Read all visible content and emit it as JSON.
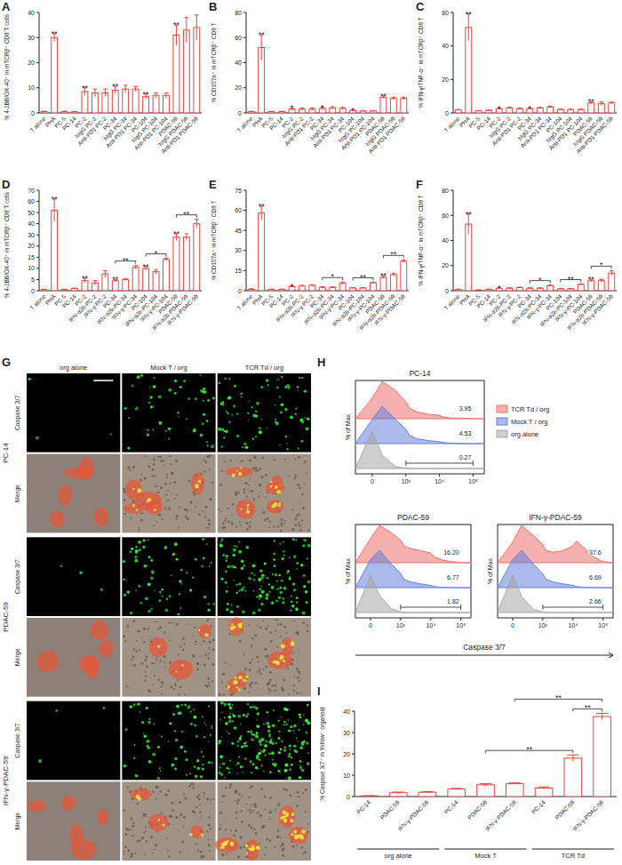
{
  "chart_data": [
    {
      "type": "bar",
      "panel": "A",
      "y_label": "% 4-1BB/OX-40⁺ in mTCRβ⁺ CD8 T cells",
      "color": "#e8423b",
      "categories": [
        "T alone",
        "PHA",
        "PC-5",
        "PC-14",
        "PC-2",
        "hIgG PC-2",
        "Anti-PD1 PC-2",
        "PC-34",
        "hIgG PC-34",
        "Anti-PD1 PC-34",
        "PC-104",
        "hIgG PC-104",
        "Anti-PD1 PC-104",
        "PDAC-59",
        "hIgG PDAC-59",
        "Anti-PD1 PDAC-59"
      ],
      "values": [
        0.5,
        30,
        0.5,
        0.5,
        8.5,
        8,
        8,
        9,
        9.5,
        9.5,
        6.5,
        7,
        7,
        31,
        33,
        34
      ],
      "errors": [
        0.2,
        1.5,
        0.2,
        0.1,
        1.5,
        1.5,
        1.5,
        1.5,
        1.5,
        1,
        1,
        1,
        1,
        4,
        5,
        5
      ],
      "ylim": [
        0,
        40
      ],
      "yticks": [
        0,
        10,
        20,
        30,
        40
      ],
      "annotations": [
        {
          "from": 1,
          "to": 1,
          "text": "**"
        },
        {
          "from": 4,
          "to": 4,
          "text": "**"
        },
        {
          "from": 7,
          "to": 7,
          "text": "**"
        },
        {
          "from": 10,
          "to": 10,
          "text": "**"
        },
        {
          "from": 13,
          "to": 13,
          "text": "**"
        }
      ]
    },
    {
      "type": "bar",
      "panel": "B",
      "y_label": "% CD107a⁺ in mTCRβ⁺ CD8 T",
      "color": "#e8423b",
      "categories": [
        "T alone",
        "PHA",
        "PC-5",
        "PC-14",
        "PC-2",
        "hIgG PC-2",
        "Anti-PD1 PC-2",
        "PC-34",
        "hIgG PC-34",
        "Anti-PD1 PC-34",
        "PC-104",
        "hIgG PC-104",
        "Anti-PD1 PC-104",
        "PDAC-59",
        "hIgG PDAC-59",
        "Anti-PD1 PDAC-59"
      ],
      "values": [
        1,
        52,
        1,
        1,
        3,
        3,
        3,
        3.5,
        4,
        3.5,
        2,
        1.5,
        1.5,
        12.5,
        11.5,
        11.5
      ],
      "errors": [
        0.3,
        10,
        0.2,
        0.2,
        1,
        1,
        1,
        1,
        1,
        1,
        0.3,
        0.3,
        0.3,
        1,
        1,
        1
      ],
      "ylim": [
        0,
        80
      ],
      "yticks": [
        0,
        20,
        40,
        60,
        80
      ],
      "annotations": [
        {
          "from": 1,
          "to": 1,
          "text": "**"
        },
        {
          "from": 4,
          "to": 4,
          "text": "*"
        },
        {
          "from": 7,
          "to": 7,
          "text": "*"
        },
        {
          "from": 10,
          "to": 10,
          "text": "*"
        },
        {
          "from": 13,
          "to": 13,
          "text": "**"
        }
      ]
    },
    {
      "type": "bar",
      "panel": "C",
      "y_label": "% IFN-γ/TNF-α⁺ in mTCRβ⁺ CD8 T",
      "color": "#e8423b",
      "categories": [
        "T alone",
        "PHA",
        "PC-5",
        "PC-14",
        "PC-2",
        "hIgG PC-2",
        "Anti-PD1 PC-2",
        "PC-34",
        "hIgG PC-34",
        "Anti-PD1 PC-34",
        "PC-104",
        "hIgG PC-104",
        "Anti-PD1 PC-104",
        "PDAC-59",
        "hIgG PDAC-59",
        "Anti-PD1 PDAC-59"
      ],
      "values": [
        1.8,
        51,
        1.2,
        1.5,
        2.5,
        3,
        2.5,
        2.5,
        3,
        3.5,
        2,
        2,
        2,
        6,
        5.5,
        6
      ],
      "errors": [
        0.2,
        8,
        0.2,
        0.2,
        0.3,
        0.5,
        0.5,
        0.3,
        0.3,
        0.5,
        0.2,
        0.2,
        0.2,
        0.7,
        1,
        0.5
      ],
      "ylim": [
        0,
        60
      ],
      "yticks": [
        0,
        20,
        40,
        60
      ],
      "annotations": [
        {
          "from": 1,
          "to": 1,
          "text": "**"
        },
        {
          "from": 4,
          "to": 4,
          "text": "*"
        },
        {
          "from": 7,
          "to": 7,
          "text": "*"
        },
        {
          "from": 13,
          "to": 13,
          "text": "**"
        }
      ]
    },
    {
      "type": "bar",
      "panel": "D",
      "y_label": "% 4-1BB/OX-40⁺ in mTCRβ⁺ CD8 T cells",
      "color": "#e8423b",
      "categories": [
        "T alone",
        "PHA",
        "PC-5",
        "PC-14",
        "PC-2",
        "IFN-α2b-PC-2",
        "IFN-γ-PC-2",
        "PC-34",
        "IFN-α2b-PC-34",
        "IFN-γ-PC-34",
        "PC-104",
        "IFN-α2b-PC-104",
        "IFN-γ-PC-104",
        "PDAC-59",
        "IFN-α2b-PDAC-59",
        "IFN-γ-PDAC-59"
      ],
      "values": [
        0.5,
        52,
        0.5,
        1,
        4.5,
        3.5,
        7.5,
        4.5,
        5,
        10.5,
        10,
        8.5,
        14,
        28,
        28,
        40
      ],
      "errors": [
        0.2,
        10,
        0.2,
        0.2,
        1,
        1,
        1.5,
        0.5,
        0.5,
        0.8,
        0.8,
        1,
        0.5,
        3,
        3,
        4
      ],
      "ylim": [
        0,
        70
      ],
      "yticks": [
        0,
        5,
        10,
        15,
        20,
        30,
        40,
        50,
        60,
        70
      ],
      "annotations": [
        {
          "from": 1,
          "to": 1,
          "text": "**"
        },
        {
          "from": 4,
          "to": 4,
          "text": "**"
        },
        {
          "from": 7,
          "to": 7,
          "text": "**"
        },
        {
          "from": 10,
          "to": 10,
          "text": "**"
        },
        {
          "from": 13,
          "to": 13,
          "text": "**"
        },
        {
          "from": 7,
          "to": 9,
          "text": "**"
        },
        {
          "from": 10,
          "to": 12,
          "text": "*"
        },
        {
          "from": 13,
          "to": 15,
          "text": "**"
        }
      ]
    },
    {
      "type": "bar",
      "panel": "E",
      "y_label": "% CD107a⁺ in mTCRβ⁺ CD8 T",
      "color": "#e8423b",
      "categories": [
        "T alone",
        "PHA",
        "PC-5",
        "PC-14",
        "PC-2",
        "IFN-α2b-PC-2",
        "IFN-γ-PC-2",
        "PC-34",
        "IFN-α2b-PC-34",
        "IFN-γ-PC-34",
        "PC-104",
        "IFN-α2b-PC-104",
        "IFN-γ-PC-104",
        "PDAC-59",
        "IFN-α2b-PDAC-59",
        "IFN-γ-PDAC-59"
      ],
      "values": [
        1,
        58,
        1,
        1,
        3,
        3.5,
        4,
        2.5,
        2.5,
        5.5,
        2,
        2,
        6,
        10,
        12,
        22
      ],
      "errors": [
        0.5,
        5,
        0.2,
        0.2,
        0.5,
        0.5,
        0.5,
        0.5,
        0.5,
        1,
        0.3,
        0.3,
        0.3,
        1,
        1,
        1
      ],
      "ylim": [
        0,
        75
      ],
      "yticks": [
        0,
        15,
        30,
        45,
        60,
        75
      ],
      "annotations": [
        {
          "from": 1,
          "to": 1,
          "text": "**"
        },
        {
          "from": 4,
          "to": 4,
          "text": "*"
        },
        {
          "from": 13,
          "to": 13,
          "text": "**"
        },
        {
          "from": 7,
          "to": 9,
          "text": "*"
        },
        {
          "from": 10,
          "to": 12,
          "text": "**"
        },
        {
          "from": 13,
          "to": 15,
          "text": "**"
        }
      ]
    },
    {
      "type": "bar",
      "panel": "F",
      "y_label": "% IFN-γ/TNF-α⁺ in mTCRβ⁺ CD8 T",
      "color": "#e8423b",
      "categories": [
        "T alone",
        "PHA",
        "PC-5",
        "PC-14",
        "PC-2",
        "IFN-α2b-PC-2",
        "IFN-γ-PC-2",
        "PC-34",
        "IFN-α2b-PC-34",
        "IFN-γ-PC-34",
        "PC-104",
        "IFN-α2b-PC-104",
        "IFN-γ-PC-104",
        "PDAC-59",
        "IFN-α2b-PDAC-59",
        "IFN-γ-PDAC-59"
      ],
      "values": [
        1,
        53,
        0.5,
        1,
        2,
        2,
        2.5,
        2,
        2,
        4,
        1.5,
        1.5,
        5,
        8,
        8,
        14
      ],
      "errors": [
        0.3,
        8,
        0.2,
        0.3,
        0.3,
        0.3,
        0.3,
        0.3,
        0.3,
        0.5,
        0.2,
        0.2,
        0.3,
        1,
        1,
        2
      ],
      "ylim": [
        0,
        80
      ],
      "yticks": [
        0,
        20,
        40,
        60,
        80
      ],
      "annotations": [
        {
          "from": 1,
          "to": 1,
          "text": "**"
        },
        {
          "from": 4,
          "to": 4,
          "text": "*"
        },
        {
          "from": 13,
          "to": 13,
          "text": "**"
        },
        {
          "from": 7,
          "to": 9,
          "text": "*"
        },
        {
          "from": 10,
          "to": 12,
          "text": "**"
        },
        {
          "from": 13,
          "to": 15,
          "text": "*"
        }
      ]
    },
    {
      "type": "histogram",
      "panel": "H",
      "x_label": "Caspase 3/7",
      "y_label": "% of Max",
      "tick_labels": "x",
      "legend": "right",
      "x": [
        -500,
        0,
        300,
        700,
        1000,
        2000,
        4000,
        7000,
        10000,
        20000,
        40000,
        70000,
        100000,
        130000
      ],
      "xlim": [
        -500,
        130000
      ],
      "xticks": [
        0,
        {
          "value": 1000,
          "label": "10³"
        },
        {
          "value": 10000,
          "label": "10⁴"
        },
        {
          "value": 100000,
          "label": "10⁵"
        }
      ],
      "ylim": [
        0,
        100
      ],
      "series": [
        {
          "name": "TCR Td / org",
          "color": "#ef6f69"
        },
        {
          "name": "Mock T / org",
          "color": "#6680de"
        },
        {
          "name": "org alone",
          "color": "#a6a6a6"
        }
      ],
      "gate": [
        1000,
        100000
      ],
      "plots": [
        {
          "title": "PC-14",
          "values": [
            [
              0,
              55,
              100,
              75,
              45,
              28,
              18,
              12,
              9,
              5,
              2,
              1,
              0,
              0
            ],
            [
              0,
              65,
              100,
              65,
              38,
              22,
              13,
              8,
              5,
              3,
              1,
              0,
              0,
              0
            ],
            [
              0,
              100,
              35,
              5,
              1,
              0,
              0,
              0,
              0,
              0,
              0,
              0,
              0,
              0
            ]
          ],
          "gate_values": [
            3.95,
            4.53,
            0.27
          ],
          "gate_labels": [
            "3.95",
            "4.53",
            "0.27"
          ]
        },
        {
          "title": "PDAC-59",
          "values": [
            [
              0,
              65,
              100,
              80,
              60,
              45,
              38,
              32,
              26,
              16,
              8,
              3,
              1,
              0
            ],
            [
              0,
              75,
              100,
              62,
              38,
              22,
              15,
              10,
              6,
              3,
              1,
              0,
              0,
              0
            ],
            [
              0,
              100,
              45,
              10,
              2,
              0,
              0,
              0,
              0,
              0,
              0,
              0,
              0,
              0
            ]
          ],
          "gate_values": [
            16.2,
            6.77,
            1.82
          ],
          "gate_labels": [
            "16.20",
            "6.77",
            "1.82"
          ]
        },
        {
          "title": "IFN-γ-PDAC-59",
          "values": [
            [
              0,
              55,
              100,
              72,
              48,
              33,
              28,
              32,
              45,
              58,
              42,
              16,
              3,
              0
            ],
            [
              0,
              75,
              100,
              62,
              37,
              22,
              15,
              10,
              6,
              3,
              1,
              0,
              0,
              0
            ],
            [
              0,
              100,
              42,
              8,
              2,
              0,
              0,
              0,
              0,
              0,
              0,
              0,
              0,
              0
            ]
          ],
          "gate_values": [
            37.6,
            6.69,
            2.66
          ],
          "gate_labels": [
            "37.6",
            "6.69",
            "2.66"
          ]
        }
      ]
    },
    {
      "type": "bar",
      "panel": "I",
      "y_label": "% Caspase 3/7⁺ in Yellow⁺ organoid",
      "color": "#e8423b",
      "categories": [
        "PC-14",
        "PDAC-59",
        "IFN-γ-PDAC-59",
        "PC-14",
        "PDAC-59",
        "IFN-γ-PDAC-59",
        "PC-14",
        "PDAC-59",
        "IFN-γ-PDAC-59"
      ],
      "groups": [
        "org alone",
        "Mock T",
        "TCR Td"
      ],
      "values": [
        0.3,
        1.8,
        2,
        3.5,
        5.5,
        6,
        4,
        18,
        37.5
      ],
      "errors": [
        0.1,
        0.3,
        0.3,
        0.3,
        0.5,
        0.4,
        0.5,
        1.5,
        1.5
      ],
      "ylim": [
        0,
        40
      ],
      "yticks": [
        0,
        10,
        20,
        30,
        40
      ],
      "annotations": [
        {
          "from": 4,
          "to": 7,
          "text": "**"
        },
        {
          "from": 7,
          "to": 8,
          "text": "**"
        },
        {
          "from": 5,
          "to": 8,
          "text": "**"
        }
      ]
    }
  ],
  "image_panel": {
    "panel": "G",
    "columns": [
      "org alone",
      "Mock T / org",
      "TCR Td / org"
    ],
    "rows": [
      {
        "label": "PC-14",
        "channels": [
          "Caspase 3/7",
          "Merge"
        ]
      },
      {
        "label": "PDAC-59",
        "channels": [
          "Caspase 3/7",
          "Merge"
        ]
      },
      {
        "label": "IFN-γ-PDAC-59",
        "channels": [
          "Caspase 3/7",
          "Merge"
        ]
      }
    ]
  }
}
